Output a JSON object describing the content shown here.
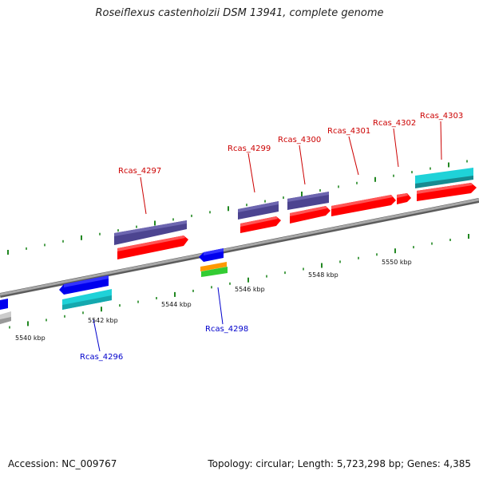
{
  "title": "Roseiflexus castenholzii DSM 13941, complete genome",
  "footer": {
    "accession": "Accession: NC_009767",
    "summary": "Topology: circular; Length: 5,723,298 bp; Genes: 4,385"
  },
  "ticks": [
    "5540 kbp",
    "5542 kbp",
    "5544 kbp",
    "5546 kbp",
    "5548 kbp",
    "5550 kbp"
  ],
  "labels": [
    {
      "text": "Rcas_4296",
      "color": "#0000cc"
    },
    {
      "text": "Rcas_4297",
      "color": "#cc0000"
    },
    {
      "text": "Rcas_4298",
      "color": "#0000cc"
    },
    {
      "text": "Rcas_4299",
      "color": "#cc0000"
    },
    {
      "text": "Rcas_4300",
      "color": "#cc0000"
    },
    {
      "text": "Rcas_4301",
      "color": "#cc0000"
    },
    {
      "text": "Rcas_4302",
      "color": "#cc0000"
    },
    {
      "text": "Rcas_4303",
      "color": "#cc0000"
    }
  ],
  "colors": {
    "backbone": "#8a8a8a",
    "cds_forward": "#ff0000",
    "cds_reverse": "#0000ee",
    "gene_purple": "#4c4490",
    "gene_cyan": "#1fd2d8",
    "trna_orange": "#ff9900",
    "rrna_green": "#33cc33",
    "tick_green": "#228822"
  }
}
